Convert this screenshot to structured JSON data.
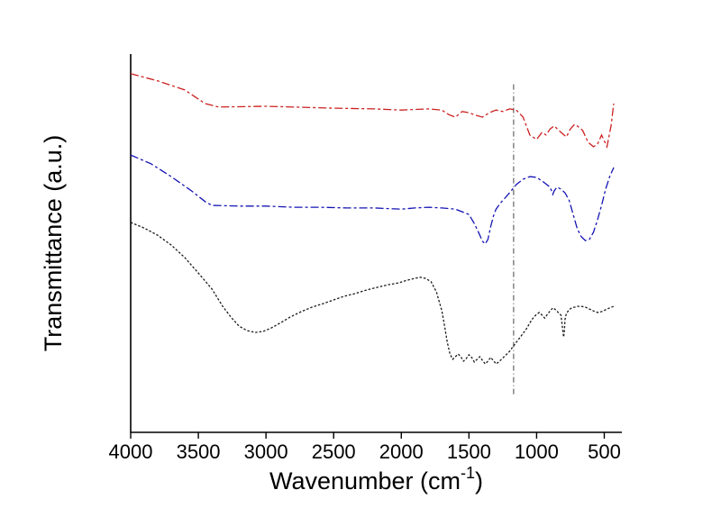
{
  "figure": {
    "background": "#ffffff",
    "axis_color": "#000000"
  },
  "chart_data": {
    "type": "line",
    "title": "",
    "xlabel": "Wavenumber (cm⁻¹)",
    "xlabel_parts": [
      "Wavenumber (cm",
      "-1",
      ")"
    ],
    "ylabel": "Transmittance (a.u.)",
    "x_axis_reversed": true,
    "x_range": [
      4000,
      370
    ],
    "ylim": [
      0,
      100
    ],
    "grid": false,
    "legend": null,
    "x_ticks": [
      4000,
      3500,
      3000,
      2500,
      2000,
      1500,
      1000,
      500
    ],
    "x_tick_labels": [
      "4000",
      "3500",
      "3000",
      "2500",
      "2000",
      "1500",
      "1000",
      "500"
    ],
    "reference_line": {
      "x": 1170,
      "y_span": [
        10,
        92
      ],
      "color": "#555555",
      "dash": [
        6,
        3,
        1,
        3
      ]
    },
    "series": [
      {
        "name": "spectrum-black",
        "color": "#1a1a1a",
        "dash": [
          2.5,
          2
        ],
        "points": [
          [
            4000,
            55.5
          ],
          [
            3900,
            54.0
          ],
          [
            3800,
            52.1
          ],
          [
            3700,
            49.5
          ],
          [
            3600,
            46.2
          ],
          [
            3500,
            42.1
          ],
          [
            3400,
            37.9
          ],
          [
            3320,
            33.3
          ],
          [
            3260,
            30.5
          ],
          [
            3200,
            28.1
          ],
          [
            3140,
            26.9
          ],
          [
            3080,
            26.4
          ],
          [
            3020,
            26.7
          ],
          [
            2960,
            27.6
          ],
          [
            2900,
            28.8
          ],
          [
            2820,
            30.5
          ],
          [
            2740,
            31.9
          ],
          [
            2660,
            33.1
          ],
          [
            2580,
            34.0
          ],
          [
            2500,
            35.0
          ],
          [
            2420,
            36.0
          ],
          [
            2340,
            36.7
          ],
          [
            2260,
            37.6
          ],
          [
            2180,
            38.3
          ],
          [
            2100,
            39.0
          ],
          [
            2020,
            39.5
          ],
          [
            1960,
            40.2
          ],
          [
            1900,
            40.7
          ],
          [
            1860,
            41.0
          ],
          [
            1820,
            40.7
          ],
          [
            1780,
            39.8
          ],
          [
            1740,
            37.1
          ],
          [
            1700,
            32.1
          ],
          [
            1680,
            28.1
          ],
          [
            1660,
            23.8
          ],
          [
            1640,
            20.7
          ],
          [
            1620,
            19.3
          ],
          [
            1600,
            20.0
          ],
          [
            1580,
            20.7
          ],
          [
            1560,
            20.0
          ],
          [
            1540,
            18.8
          ],
          [
            1520,
            19.5
          ],
          [
            1500,
            20.5
          ],
          [
            1480,
            19.8
          ],
          [
            1460,
            18.6
          ],
          [
            1440,
            19.3
          ],
          [
            1420,
            20.0
          ],
          [
            1400,
            19.0
          ],
          [
            1380,
            18.1
          ],
          [
            1360,
            18.8
          ],
          [
            1340,
            19.8
          ],
          [
            1320,
            19.0
          ],
          [
            1300,
            18.1
          ],
          [
            1280,
            18.6
          ],
          [
            1260,
            19.3
          ],
          [
            1240,
            20.0
          ],
          [
            1220,
            20.7
          ],
          [
            1200,
            21.4
          ],
          [
            1180,
            22.4
          ],
          [
            1160,
            23.3
          ],
          [
            1140,
            24.3
          ],
          [
            1120,
            25.2
          ],
          [
            1100,
            26.2
          ],
          [
            1080,
            27.1
          ],
          [
            1060,
            28.3
          ],
          [
            1040,
            29.5
          ],
          [
            1020,
            30.5
          ],
          [
            1000,
            31.2
          ],
          [
            980,
            31.7
          ],
          [
            960,
            31.0
          ],
          [
            940,
            30.2
          ],
          [
            920,
            31.2
          ],
          [
            900,
            32.1
          ],
          [
            880,
            32.9
          ],
          [
            860,
            32.4
          ],
          [
            840,
            31.7
          ],
          [
            820,
            31.0
          ],
          [
            810,
            28.1
          ],
          [
            800,
            25.2
          ],
          [
            795,
            26.7
          ],
          [
            790,
            29.8
          ],
          [
            780,
            31.4
          ],
          [
            760,
            32.4
          ],
          [
            740,
            32.9
          ],
          [
            720,
            33.1
          ],
          [
            700,
            33.3
          ],
          [
            670,
            33.3
          ],
          [
            640,
            33.1
          ],
          [
            610,
            32.6
          ],
          [
            580,
            32.1
          ],
          [
            550,
            31.7
          ],
          [
            520,
            31.9
          ],
          [
            490,
            32.4
          ],
          [
            460,
            32.9
          ],
          [
            430,
            33.3
          ]
        ]
      },
      {
        "name": "spectrum-blue",
        "color": "#1414b4",
        "dash": [
          9,
          3,
          3,
          3
        ],
        "points": [
          [
            4000,
            73.3
          ],
          [
            3850,
            71.0
          ],
          [
            3700,
            67.6
          ],
          [
            3550,
            63.8
          ],
          [
            3450,
            61.0
          ],
          [
            3400,
            60.0
          ],
          [
            3200,
            59.8
          ],
          [
            3000,
            59.8
          ],
          [
            2800,
            59.5
          ],
          [
            2600,
            59.5
          ],
          [
            2400,
            59.3
          ],
          [
            2200,
            59.3
          ],
          [
            2000,
            59.0
          ],
          [
            1900,
            59.3
          ],
          [
            1800,
            59.5
          ],
          [
            1700,
            59.3
          ],
          [
            1600,
            59.0
          ],
          [
            1550,
            58.3
          ],
          [
            1500,
            57.6
          ],
          [
            1460,
            55.2
          ],
          [
            1430,
            52.9
          ],
          [
            1400,
            50.5
          ],
          [
            1380,
            49.8
          ],
          [
            1360,
            51.0
          ],
          [
            1340,
            54.3
          ],
          [
            1320,
            57.1
          ],
          [
            1300,
            59.0
          ],
          [
            1270,
            60.5
          ],
          [
            1240,
            61.7
          ],
          [
            1200,
            63.3
          ],
          [
            1150,
            65.5
          ],
          [
            1100,
            66.9
          ],
          [
            1050,
            67.6
          ],
          [
            1000,
            67.4
          ],
          [
            950,
            66.2
          ],
          [
            900,
            64.8
          ],
          [
            880,
            62.9
          ],
          [
            870,
            63.8
          ],
          [
            850,
            64.8
          ],
          [
            820,
            64.3
          ],
          [
            790,
            63.3
          ],
          [
            760,
            61.4
          ],
          [
            730,
            57.6
          ],
          [
            700,
            53.8
          ],
          [
            670,
            51.7
          ],
          [
            640,
            50.7
          ],
          [
            610,
            51.0
          ],
          [
            580,
            52.9
          ],
          [
            550,
            56.2
          ],
          [
            520,
            60.0
          ],
          [
            490,
            64.3
          ],
          [
            460,
            67.6
          ],
          [
            430,
            70.0
          ]
        ]
      },
      {
        "name": "spectrum-red",
        "color": "#cc2020",
        "dash": [
          9,
          3,
          3,
          3
        ],
        "points": [
          [
            4000,
            94.8
          ],
          [
            3800,
            92.9
          ],
          [
            3600,
            90.5
          ],
          [
            3450,
            86.9
          ],
          [
            3350,
            86.0
          ],
          [
            3000,
            86.2
          ],
          [
            2500,
            85.7
          ],
          [
            2200,
            85.5
          ],
          [
            2000,
            85.2
          ],
          [
            1800,
            85.5
          ],
          [
            1700,
            85.2
          ],
          [
            1650,
            84.0
          ],
          [
            1600,
            83.3
          ],
          [
            1550,
            84.8
          ],
          [
            1500,
            84.5
          ],
          [
            1450,
            83.8
          ],
          [
            1400,
            83.3
          ],
          [
            1350,
            84.5
          ],
          [
            1300,
            85.2
          ],
          [
            1250,
            84.8
          ],
          [
            1200,
            85.5
          ],
          [
            1150,
            85.2
          ],
          [
            1100,
            83.3
          ],
          [
            1050,
            78.6
          ],
          [
            1000,
            77.4
          ],
          [
            960,
            79.3
          ],
          [
            930,
            78.6
          ],
          [
            900,
            80.2
          ],
          [
            870,
            81.0
          ],
          [
            820,
            79.3
          ],
          [
            780,
            78.1
          ],
          [
            750,
            80.2
          ],
          [
            720,
            81.4
          ],
          [
            700,
            81.0
          ],
          [
            660,
            79.8
          ],
          [
            620,
            76.7
          ],
          [
            580,
            75.5
          ],
          [
            550,
            76.2
          ],
          [
            520,
            78.6
          ],
          [
            480,
            75.5
          ],
          [
            450,
            81.0
          ],
          [
            430,
            86.9
          ]
        ]
      }
    ]
  }
}
